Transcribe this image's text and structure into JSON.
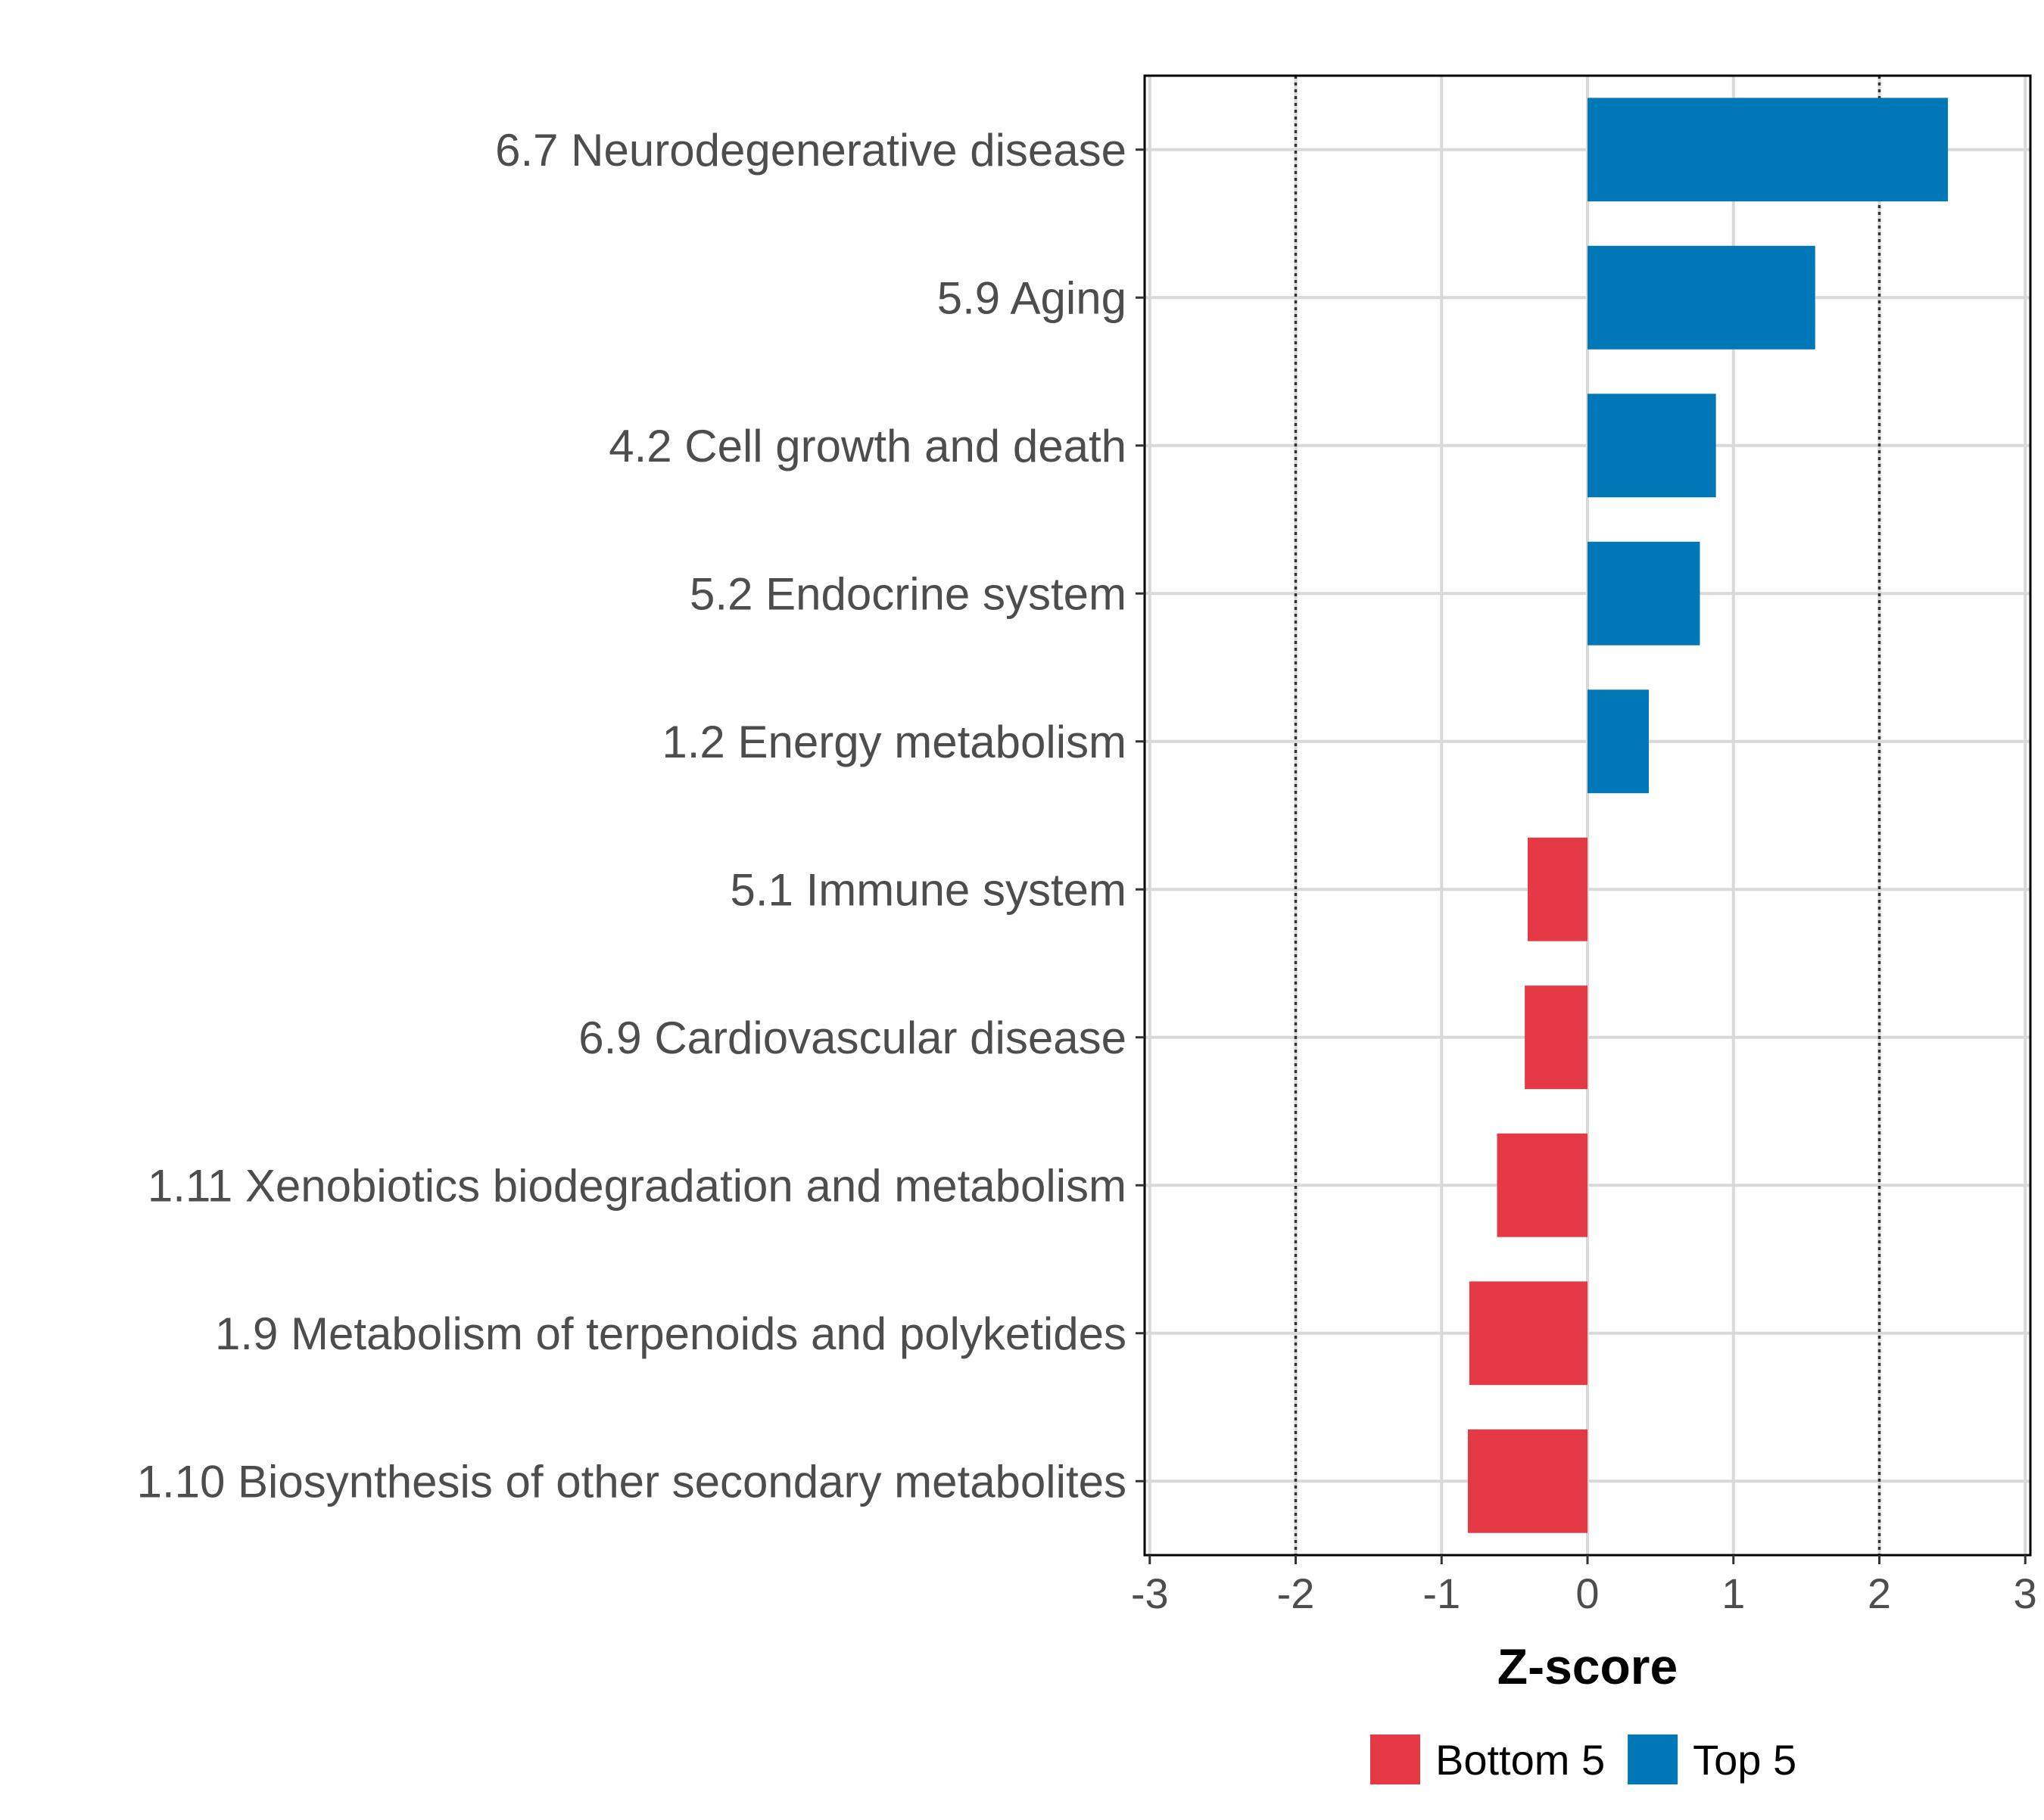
{
  "chart_data": {
    "type": "bar",
    "orientation": "horizontal",
    "title": "",
    "xlabel": "Z-score",
    "ylabel": "",
    "xlim": [
      -3,
      3
    ],
    "xticks": [
      -3,
      -2,
      -1,
      0,
      1,
      2,
      3
    ],
    "xtick_labels": [
      "-3",
      "-2",
      "-1",
      "0",
      "1",
      "2",
      "3"
    ],
    "reference_lines": [
      -2,
      2
    ],
    "grid": true,
    "categories": [
      "6.7 Neurodegenerative disease",
      "5.9 Aging",
      "4.2 Cell growth and death",
      "5.2 Endocrine system",
      "1.2 Energy metabolism",
      "5.1 Immune system",
      "6.9 Cardiovascular disease",
      "1.11 Xenobiotics biodegradation and metabolism",
      "1.9 Metabolism of terpenoids and polyketides",
      "1.10 Biosynthesis of other secondary metabolites"
    ],
    "values": [
      2.47,
      1.56,
      0.88,
      0.77,
      0.42,
      -0.41,
      -0.43,
      -0.62,
      -0.81,
      -0.82
    ],
    "groups": [
      "Top 5",
      "Top 5",
      "Top 5",
      "Top 5",
      "Top 5",
      "Bottom 5",
      "Bottom 5",
      "Bottom 5",
      "Bottom 5",
      "Bottom 5"
    ],
    "legend": {
      "position": "bottom",
      "entries": [
        {
          "label": "Bottom 5",
          "color": "#e63946"
        },
        {
          "label": "Top 5",
          "color": "#0077b6"
        }
      ]
    },
    "colors": {
      "Bottom 5": "#e63946",
      "Top 5": "#0077b6"
    }
  }
}
